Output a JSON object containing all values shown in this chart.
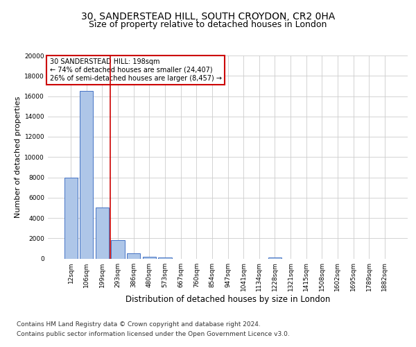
{
  "title_line1": "30, SANDERSTEAD HILL, SOUTH CROYDON, CR2 0HA",
  "title_line2": "Size of property relative to detached houses in London",
  "xlabel": "Distribution of detached houses by size in London",
  "ylabel": "Number of detached properties",
  "bar_categories": [
    "12sqm",
    "106sqm",
    "199sqm",
    "293sqm",
    "386sqm",
    "480sqm",
    "573sqm",
    "667sqm",
    "760sqm",
    "854sqm",
    "947sqm",
    "1041sqm",
    "1134sqm",
    "1228sqm",
    "1321sqm",
    "1415sqm",
    "1508sqm",
    "1602sqm",
    "1695sqm",
    "1789sqm",
    "1882sqm"
  ],
  "bar_values": [
    8000,
    16500,
    5000,
    1800,
    500,
    200,
    120,
    0,
    0,
    0,
    0,
    0,
    0,
    120,
    0,
    0,
    0,
    0,
    0,
    0,
    0
  ],
  "bar_color": "#aec6e8",
  "bar_edge_color": "#4472c4",
  "property_line_index": 2,
  "annotation_text": "30 SANDERSTEAD HILL: 198sqm\n← 74% of detached houses are smaller (24,407)\n26% of semi-detached houses are larger (8,457) →",
  "annotation_box_color": "#ffffff",
  "annotation_box_edge": "#cc0000",
  "red_line_color": "#cc0000",
  "footer_line1": "Contains HM Land Registry data © Crown copyright and database right 2024.",
  "footer_line2": "Contains public sector information licensed under the Open Government Licence v3.0.",
  "ylim": [
    0,
    20000
  ],
  "yticks": [
    0,
    2000,
    4000,
    6000,
    8000,
    10000,
    12000,
    14000,
    16000,
    18000,
    20000
  ],
  "background_color": "#ffffff",
  "grid_color": "#cccccc",
  "title_fontsize": 10,
  "subtitle_fontsize": 9,
  "axis_label_fontsize": 8,
  "tick_fontsize": 6.5,
  "footer_fontsize": 6.5,
  "annot_fontsize": 7
}
